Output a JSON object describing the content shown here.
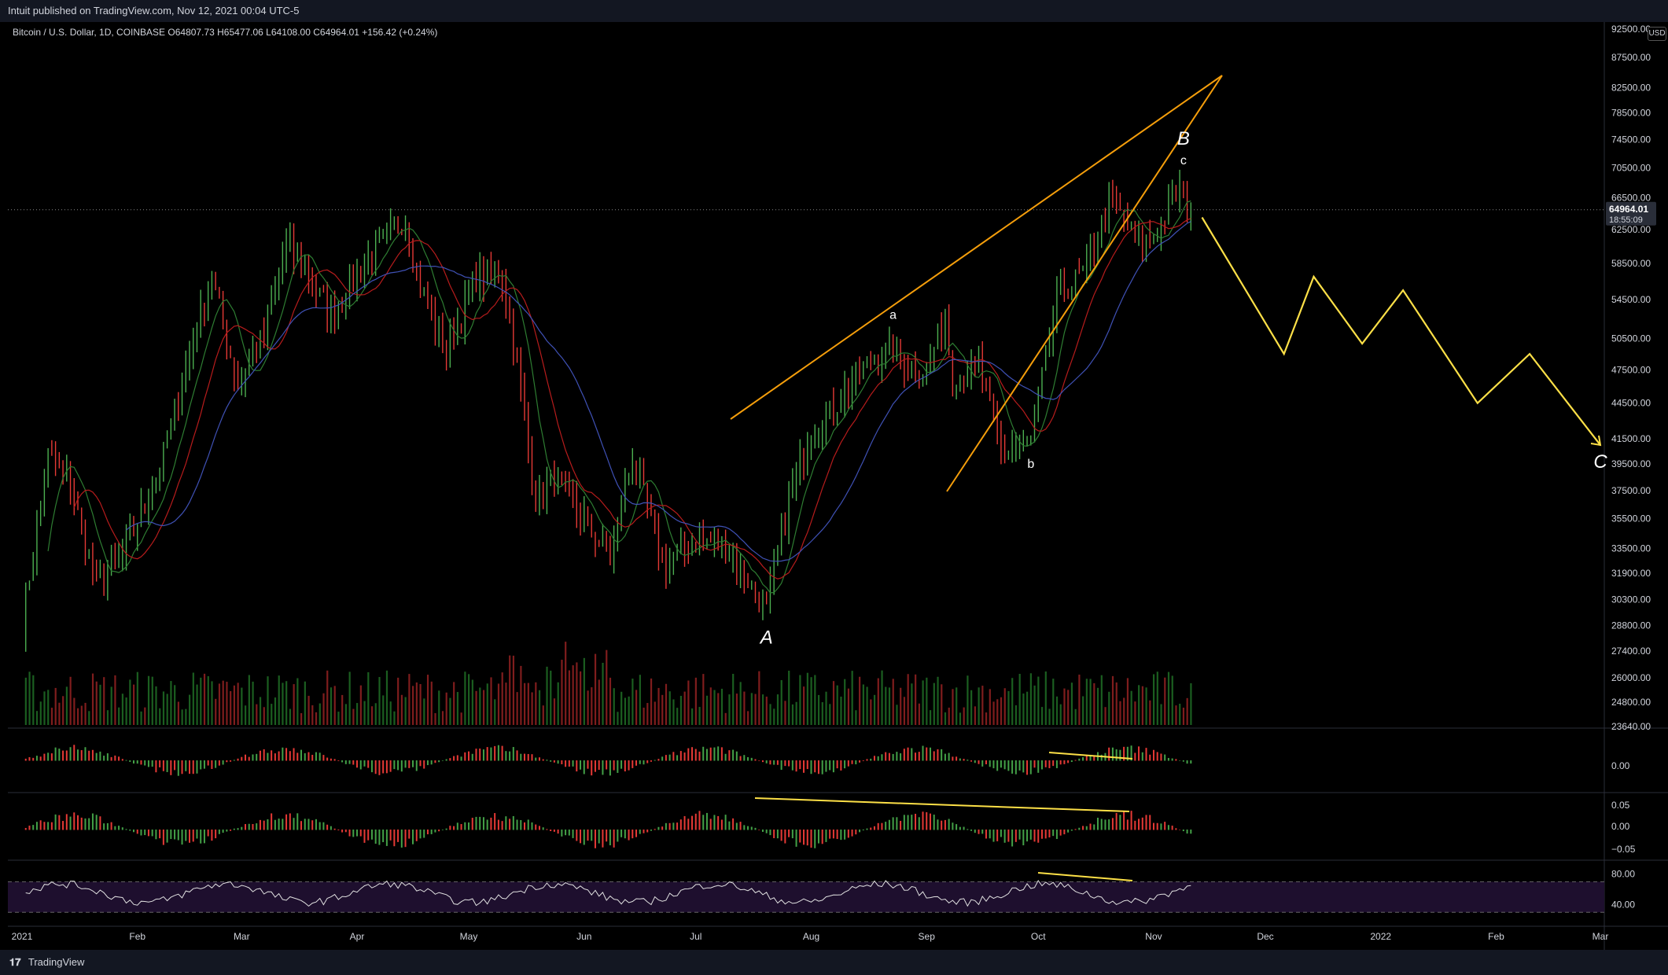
{
  "header": {
    "published": "Intuit published on TradingView.com, Nov 12, 2021 00:04 UTC-5"
  },
  "footer": {
    "brand": "TradingView",
    "logo": "tv-logo-icon"
  },
  "legend": {
    "symbol": "Bitcoin / U.S. Dollar, 1D, COINBASE",
    "ohlc": "O64807.73 H65477.06 L64108.00 C64964.01 +156.42 (+0.24%)"
  },
  "currency": "USD",
  "chart_data": [
    {
      "type": "candlestick",
      "title": "Bitcoin / U.S. Dollar, 1D, COINBASE",
      "y_scale": "log",
      "y_ticks": [
        "23640.00",
        "24800.00",
        "26000.00",
        "27400.00",
        "28800.00",
        "30300.00",
        "31900.00",
        "33500.00",
        "35500.00",
        "37500.00",
        "39500.00",
        "41500.00",
        "44500.00",
        "47500.00",
        "50500.00",
        "54500.00",
        "58500.00",
        "62500.00",
        "66500.00",
        "70500.00",
        "74500.00",
        "78500.00",
        "82500.00",
        "87500.00",
        "92500.00"
      ],
      "x_ticks": [
        "2021",
        "Feb",
        "Mar",
        "Apr",
        "May",
        "Jun",
        "Jul",
        "Aug",
        "Sep",
        "Oct",
        "Nov",
        "Dec",
        "2022",
        "Feb",
        "Mar"
      ],
      "last_price_label": "64964.01",
      "countdown_label": "18:55:09",
      "price_path": [
        [
          "2021-01-01",
          29000
        ],
        [
          "2021-01-08",
          40000
        ],
        [
          "2021-01-14",
          38000
        ],
        [
          "2021-01-21",
          31000
        ],
        [
          "2021-01-28",
          33000
        ],
        [
          "2021-02-07",
          39000
        ],
        [
          "2021-02-14",
          48000
        ],
        [
          "2021-02-21",
          57000
        ],
        [
          "2021-02-28",
          46000
        ],
        [
          "2021-03-07",
          51000
        ],
        [
          "2021-03-13",
          61000
        ],
        [
          "2021-03-25",
          53000
        ],
        [
          "2021-04-03",
          58500
        ],
        [
          "2021-04-14",
          64000
        ],
        [
          "2021-04-18",
          56000
        ],
        [
          "2021-04-25",
          49000
        ],
        [
          "2021-05-03",
          57000
        ],
        [
          "2021-05-10",
          57000
        ],
        [
          "2021-05-13",
          50000
        ],
        [
          "2021-05-19",
          37000
        ],
        [
          "2021-05-24",
          38500
        ],
        [
          "2021-06-08",
          33000
        ],
        [
          "2021-06-14",
          40000
        ],
        [
          "2021-06-22",
          32500
        ],
        [
          "2021-07-01",
          34000
        ],
        [
          "2021-07-08",
          33800
        ],
        [
          "2021-07-20",
          29800
        ],
        [
          "2021-07-26",
          37000
        ],
        [
          "2021-07-31",
          41500
        ],
        [
          "2021-08-08",
          44500
        ],
        [
          "2021-08-14",
          47500
        ],
        [
          "2021-08-22",
          49500
        ],
        [
          "2021-08-31",
          47000
        ],
        [
          "2021-09-06",
          52500
        ],
        [
          "2021-09-08",
          46500
        ],
        [
          "2021-09-15",
          48000
        ],
        [
          "2021-09-21",
          40500
        ],
        [
          "2021-09-29",
          41500
        ],
        [
          "2021-10-06",
          54500
        ],
        [
          "2021-10-14",
          58000
        ],
        [
          "2021-10-20",
          66000
        ],
        [
          "2021-10-25",
          63000
        ],
        [
          "2021-10-28",
          61000
        ],
        [
          "2021-11-01",
          61500
        ],
        [
          "2021-11-08",
          67500
        ],
        [
          "2021-11-11",
          64964
        ]
      ],
      "annotations": [
        {
          "text": "A",
          "date": "2021-07-20",
          "price": 27800
        },
        {
          "text": "a",
          "date": "2021-08-23",
          "price": 52500
        },
        {
          "text": "b",
          "date": "2021-09-29",
          "price": 39200
        },
        {
          "text": "c",
          "date": "2021-11-09",
          "price": 71000
        },
        {
          "text": "B",
          "date": "2021-11-09",
          "price": 73800
        },
        {
          "text": "C",
          "date": "2022-03-01",
          "price": 39200
        }
      ],
      "projection_path": [
        [
          "2021-11-14",
          64000
        ],
        [
          "2021-12-06",
          49000
        ],
        [
          "2021-12-14",
          57000
        ],
        [
          "2021-12-27",
          50000
        ],
        [
          "2022-01-07",
          55500
        ],
        [
          "2022-01-27",
          44500
        ],
        [
          "2022-02-10",
          49000
        ],
        [
          "2022-03-01",
          41000
        ]
      ]
    },
    {
      "type": "bar",
      "title": "",
      "y_ticks": [
        "0.00"
      ]
    },
    {
      "type": "bar",
      "title": "",
      "y_ticks": [
        "0.05",
        "0.00",
        "−0.05"
      ]
    },
    {
      "type": "line",
      "title": "",
      "y_ticks": [
        "80.00",
        "40.00"
      ],
      "band": [
        30,
        70
      ]
    }
  ]
}
